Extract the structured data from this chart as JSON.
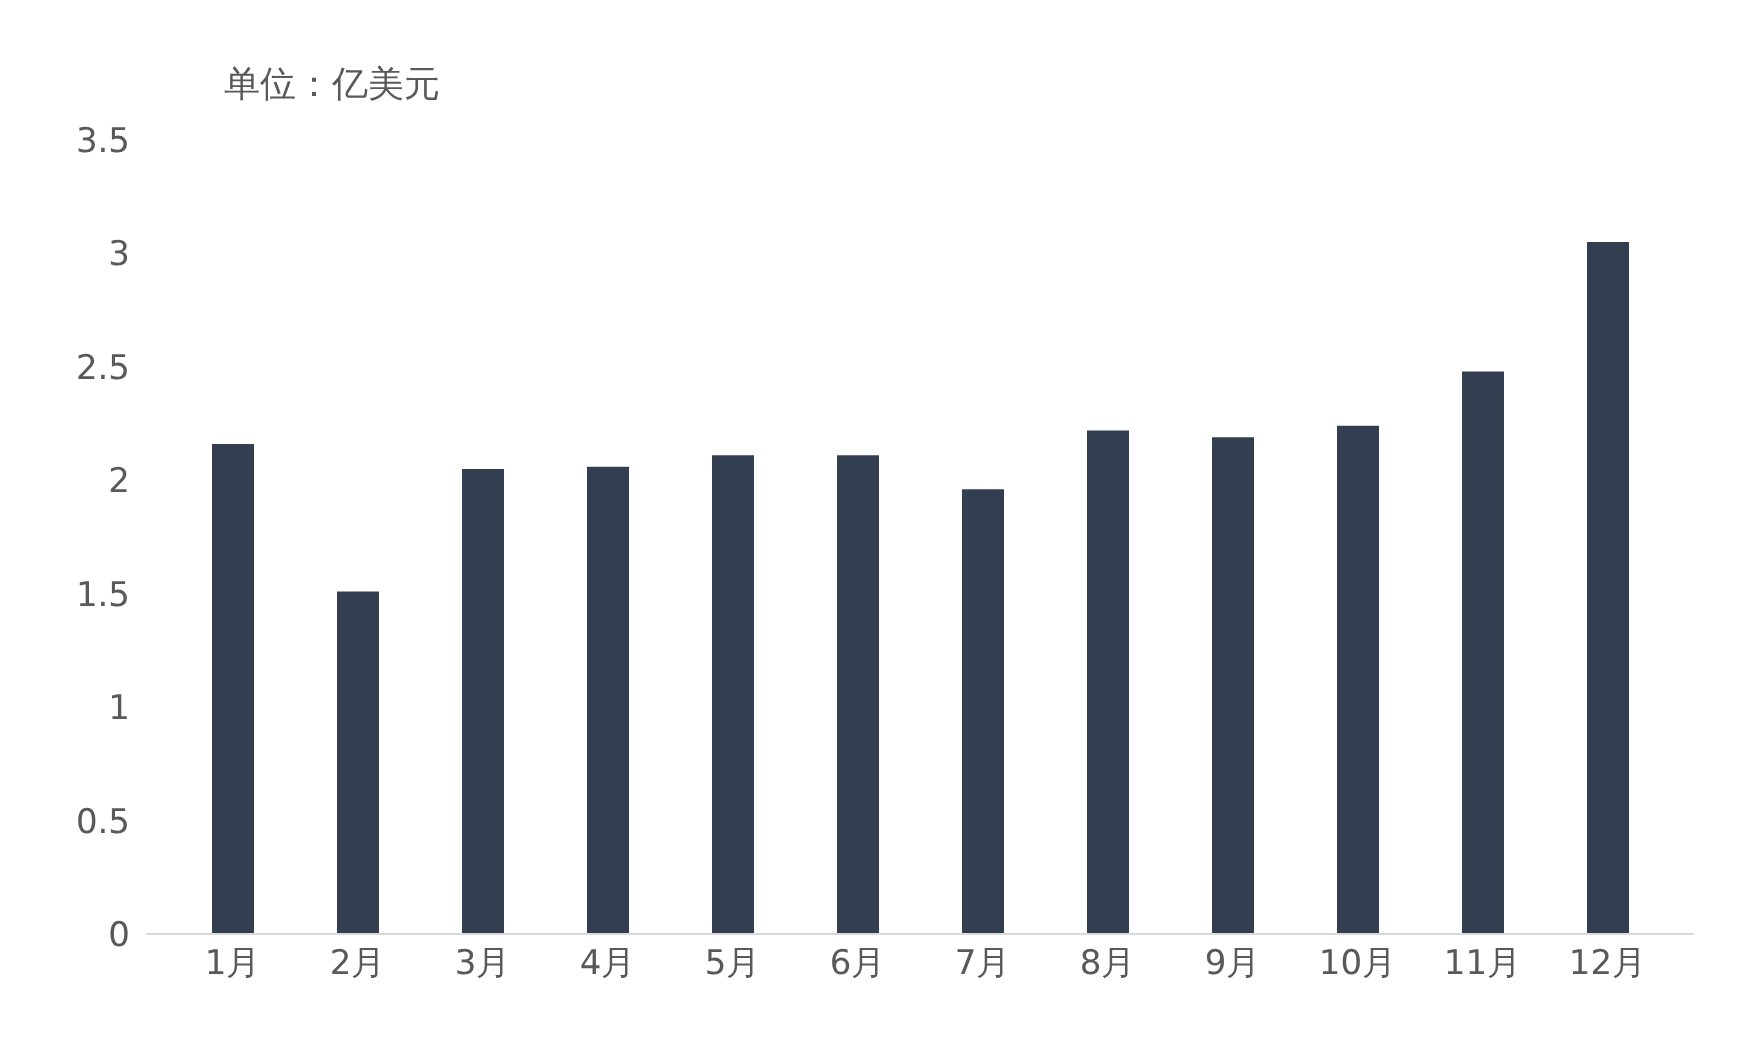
{
  "chart_data": {
    "type": "bar",
    "annotations": [
      "单位：亿美元"
    ],
    "categories": [
      "1月",
      "2月",
      "3月",
      "4月",
      "5月",
      "6月",
      "7月",
      "8月",
      "9月",
      "10月",
      "11月",
      "12月"
    ],
    "values": [
      2.16,
      1.51,
      2.05,
      2.06,
      2.11,
      2.11,
      1.96,
      2.22,
      2.19,
      2.24,
      2.48,
      3.05
    ],
    "color": "#333f50",
    "ylim": [
      0,
      3.5
    ],
    "yticks": [
      0,
      0.5,
      1,
      1.5,
      2,
      2.5,
      3,
      3.5
    ],
    "grid": false
  }
}
